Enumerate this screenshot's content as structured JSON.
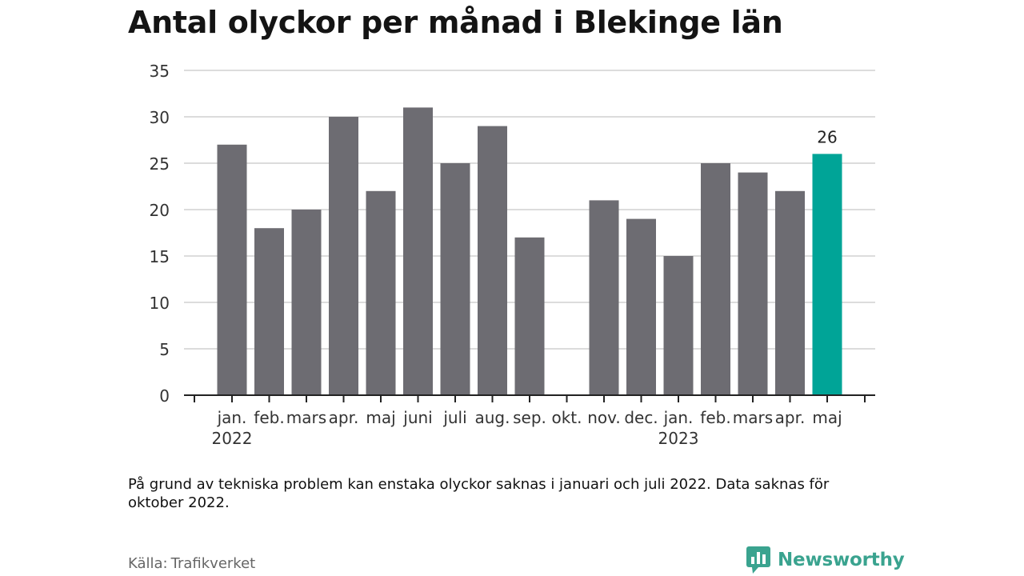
{
  "header": {
    "title": "Antal olyckor per månad i Blekinge län"
  },
  "chart_data": {
    "type": "bar",
    "categories": [
      "jan.",
      "feb.",
      "mars",
      "apr.",
      "maj",
      "juni",
      "juli",
      "aug.",
      "sep.",
      "okt.",
      "nov.",
      "dec.",
      "jan.",
      "feb.",
      "mars",
      "apr.",
      "maj"
    ],
    "year_labels": [
      {
        "index": 0,
        "label": "2022"
      },
      {
        "index": 12,
        "label": "2023"
      }
    ],
    "values": [
      27,
      18,
      20,
      30,
      22,
      31,
      25,
      29,
      17,
      null,
      21,
      19,
      15,
      25,
      24,
      22,
      26
    ],
    "highlight_index": 16,
    "highlight_label": "26",
    "ylim": [
      0,
      35
    ],
    "yticks": [
      0,
      5,
      10,
      15,
      20,
      25,
      30,
      35
    ],
    "grid": true,
    "colors": {
      "bar": "#6d6c72",
      "highlight": "#00a497",
      "grid": "#dcdcdc",
      "axis": "#222222"
    }
  },
  "footer": {
    "note": "På grund av tekniska problem kan enstaka olyckor saknas i januari och juli 2022. Data saknas för oktober 2022.",
    "source_label": "Källa:",
    "source_value": "Trafikverket",
    "brand": "Newsworthy",
    "brand_icon": "newsworthy-logo-icon",
    "brand_color": "#3aa38f"
  }
}
